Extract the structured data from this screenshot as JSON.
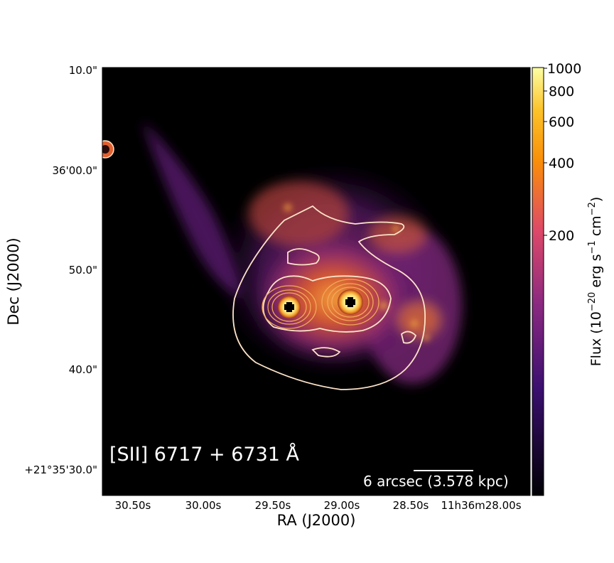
{
  "figure": {
    "panel_label": "[SII] 6717 + 6731 Å",
    "scale_bar_label": "6 arcsec (3.578 kpc)",
    "xlabel": "RA (J2000)",
    "ylabel": "Dec (J2000)",
    "x_ticks": [
      "30.50s",
      "30.00s",
      "29.50s",
      "29.00s",
      "28.50s",
      "11h36m28.00s"
    ],
    "y_ticks": [
      "10.0\"",
      "36'00.0\"",
      "50.0\"",
      "40.0\"",
      "+21°35'30.0\""
    ],
    "colorbar": {
      "label_text": "Flux (10",
      "label_exp1": "−20",
      "label_mid": " erg s",
      "label_exp2": "−1",
      "label_mid2": " cm",
      "label_exp3": "−2",
      "label_end": ")",
      "ticks": [
        "1000",
        "800",
        "600",
        "400",
        "200"
      ],
      "colormap": "inferno",
      "scale": "log"
    },
    "colors": {
      "background": "#000000",
      "contour": "#fde3c8",
      "emission_core": "#f5b545",
      "emission_mid": "#c8482e",
      "emission_outer": "#6a1f78"
    }
  }
}
